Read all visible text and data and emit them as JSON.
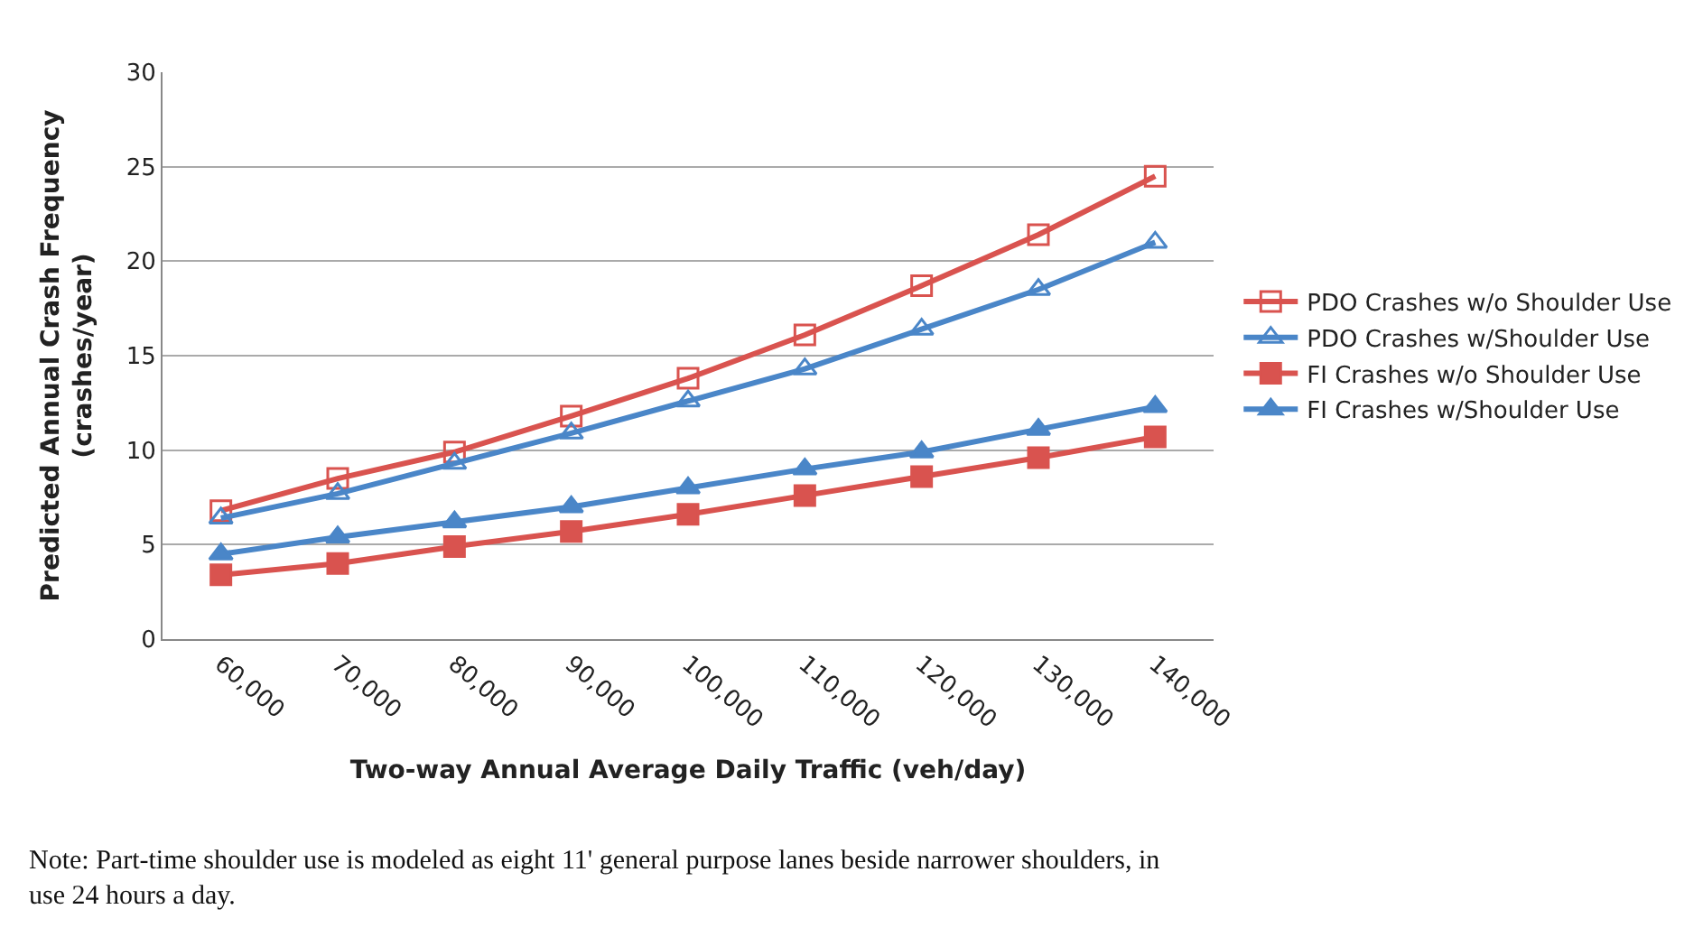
{
  "chart_data": {
    "type": "line",
    "xlabel": "Two-way Annual Average Daily Traffic (veh/day)",
    "ylabel": "Predicted Annual Crash Frequency\n(crashes/year)",
    "categories": [
      "60,000",
      "70,000",
      "80,000",
      "90,000",
      "100,000",
      "110,000",
      "120,000",
      "130,000",
      "140,000"
    ],
    "ylim": [
      0,
      30
    ],
    "yticks": [
      0,
      5,
      10,
      15,
      20,
      25,
      30
    ],
    "grid": "y",
    "legend": "right",
    "series": [
      {
        "name": "PDO Crashes w/o Shoulder Use",
        "color": "#d9534f",
        "marker": "square-open",
        "values": [
          6.8,
          8.5,
          9.9,
          11.8,
          13.8,
          16.1,
          18.7,
          21.4,
          24.5
        ]
      },
      {
        "name": "PDO Crashes w/Shoulder Use",
        "color": "#4a86c8",
        "marker": "triangle-open",
        "values": [
          6.4,
          7.7,
          9.3,
          10.9,
          12.6,
          14.3,
          16.4,
          18.5,
          21.0
        ]
      },
      {
        "name": "FI Crashes w/o Shoulder Use",
        "color": "#d9534f",
        "marker": "square",
        "values": [
          3.4,
          4.0,
          4.9,
          5.7,
          6.6,
          7.6,
          8.6,
          9.6,
          10.7
        ]
      },
      {
        "name": "FI Crashes w/Shoulder Use",
        "color": "#4a86c8",
        "marker": "triangle",
        "values": [
          4.5,
          5.4,
          6.2,
          7.0,
          8.0,
          9.0,
          9.9,
          11.1,
          12.3
        ]
      }
    ],
    "annotations": [
      "Note: Part-time shoulder use is modeled as eight 11' general purpose lanes beside narrower shoulders, in\nuse 24 hours a day."
    ]
  }
}
